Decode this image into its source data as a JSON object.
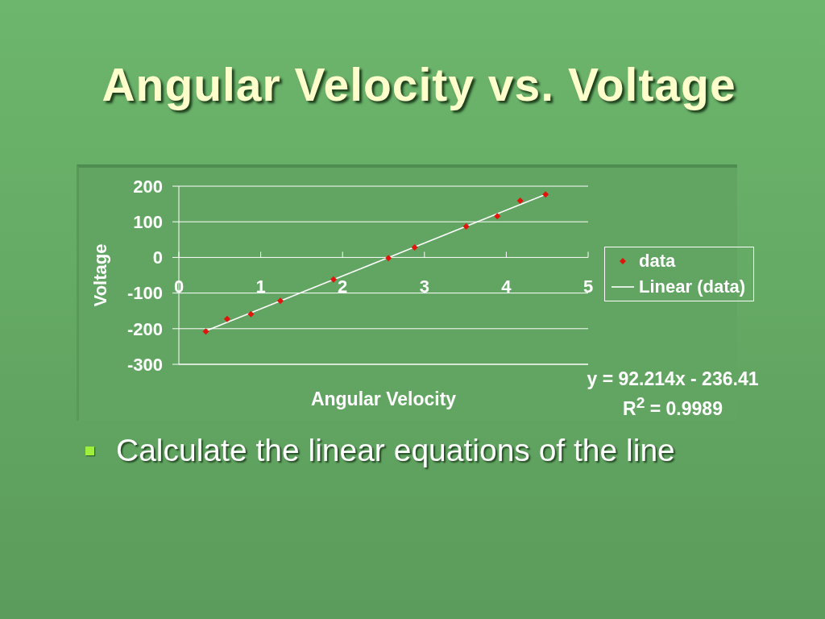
{
  "chart_data": {
    "type": "scatter",
    "title": "Angular Velocity vs. Voltage",
    "xlabel": "Angular Velocity",
    "ylabel": "Voltage",
    "xlim": [
      0,
      5
    ],
    "xticks": [
      0,
      1,
      2,
      3,
      4,
      5
    ],
    "ylim": [
      -300,
      200
    ],
    "yticks": [
      -300,
      -200,
      -100,
      0,
      100,
      200
    ],
    "grid": "y",
    "legend": "right",
    "series": [
      {
        "name": "data",
        "marker": "diamond",
        "color": "#e0140c",
        "x": [
          0.33,
          0.59,
          0.88,
          1.24,
          1.89,
          2.56,
          2.88,
          3.51,
          3.89,
          4.17,
          4.48
        ],
        "values": [
          -208,
          -173,
          -159,
          -122,
          -62,
          -2,
          28,
          87,
          116,
          159,
          177
        ]
      },
      {
        "name": "Linear (data)",
        "type": "line",
        "marker": "none",
        "color": "#ffffff",
        "x": [
          0.33,
          4.48
        ],
        "values": [
          -206,
          177
        ]
      }
    ],
    "annotations": [
      "y = 92.214x - 236.41",
      "R$^{2}$ = 0.9989",
      "Calculate the linear equations of the line"
    ]
  }
}
